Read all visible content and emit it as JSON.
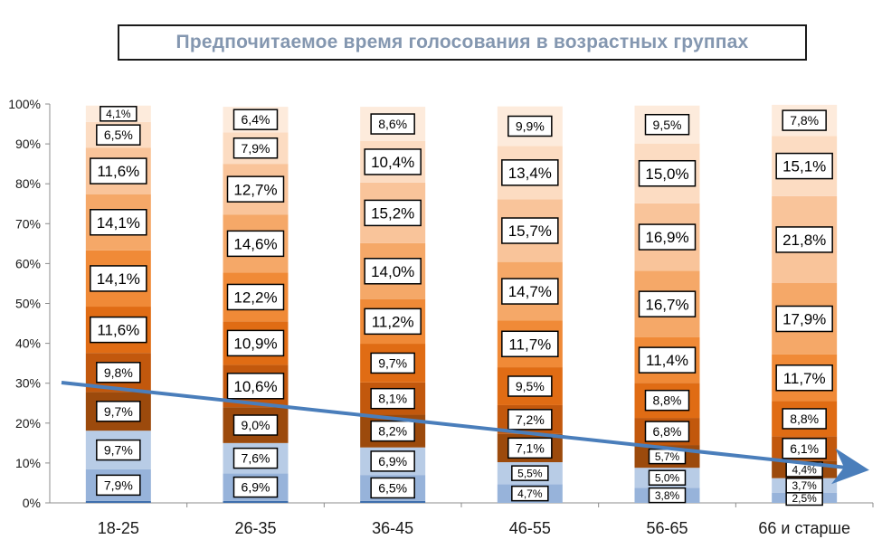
{
  "chart_data": {
    "type": "bar",
    "stacked": true,
    "title": "Предпочитаемое время голосования в возрастных группах",
    "xlabel": "",
    "ylabel": "",
    "ylim": [
      0,
      100
    ],
    "y_ticks": [
      "0%",
      "10%",
      "20%",
      "30%",
      "40%",
      "50%",
      "60%",
      "70%",
      "80%",
      "90%",
      "100%"
    ],
    "grid": false,
    "legend": "none",
    "categories": [
      "18-25",
      "26-35",
      "36-45",
      "46-55",
      "56-65",
      "66 и старше"
    ],
    "segment_colors": [
      "#3f6fad",
      "#4e81bd",
      "#6f98ce",
      "#97b3da",
      "#b8cce6",
      "#9c4a0c",
      "#c2580d",
      "#e06c14",
      "#f08a37",
      "#f5a868",
      "#f9c49a",
      "#fcdcc2",
      "#fdebdc"
    ],
    "stacks": [
      {
        "values": [
          0.5,
          7.9,
          9.7,
          9.7,
          9.8,
          11.6,
          14.1,
          14.1,
          11.6,
          6.5,
          4.1
        ],
        "labels": [
          "",
          "7,9%",
          "9,7%",
          "9,7%",
          "9,8%",
          "11,6%",
          "14,1%",
          "14,1%",
          "11,6%",
          "6,5%",
          "4,1%"
        ]
      },
      {
        "values": [
          0.5,
          6.9,
          7.6,
          9.0,
          10.6,
          10.9,
          12.2,
          14.6,
          12.7,
          7.9,
          6.4
        ],
        "labels": [
          "",
          "6,9%",
          "7,6%",
          "9,0%",
          "10,6%",
          "10,9%",
          "12,2%",
          "14,6%",
          "12,7%",
          "7,9%",
          "6,4%"
        ]
      },
      {
        "values": [
          0.5,
          6.5,
          6.9,
          8.2,
          8.1,
          9.7,
          11.2,
          14.0,
          15.2,
          10.4,
          8.6
        ],
        "labels": [
          "",
          "6,5%",
          "6,9%",
          "8,2%",
          "8,1%",
          "9,7%",
          "11,2%",
          "14,0%",
          "15,2%",
          "10,4%",
          "8,6%"
        ]
      },
      {
        "values": [
          4.7,
          5.5,
          7.1,
          7.2,
          9.5,
          11.7,
          14.7,
          15.7,
          13.4,
          9.9
        ],
        "labels": [
          "4,7%",
          "5,5%",
          "7,1%",
          "7,2%",
          "9,5%",
          "11,7%",
          "14,7%",
          "15,7%",
          "13,4%",
          "9,9%"
        ]
      },
      {
        "values": [
          3.8,
          5.0,
          5.7,
          6.8,
          8.8,
          11.4,
          16.7,
          16.9,
          15.0,
          9.5
        ],
        "labels": [
          "3,8%",
          "5,0%",
          "5,7%",
          "6,8%",
          "8,8%",
          "11,4%",
          "16,7%",
          "16,9%",
          "15,0%",
          "9,5%"
        ]
      },
      {
        "values": [
          2.5,
          3.7,
          4.4,
          6.1,
          8.8,
          11.7,
          17.9,
          21.8,
          15.1,
          7.8
        ],
        "labels": [
          "2,5%",
          "3,7%",
          "4,4%",
          "6,1%",
          "8,8%",
          "11,7%",
          "17,9%",
          "21,8%",
          "15,1%",
          "7,8%"
        ]
      }
    ],
    "annotation": {
      "type": "trend-arrow",
      "color": "#4a7ebb"
    }
  }
}
